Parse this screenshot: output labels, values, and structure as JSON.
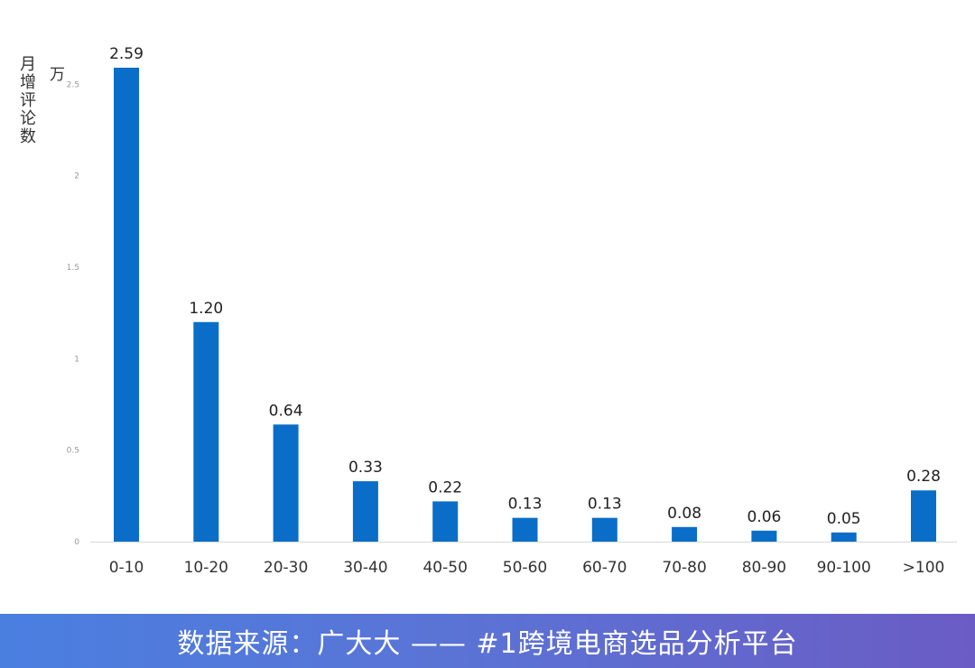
{
  "chart_data": {
    "type": "bar",
    "categories": [
      "0-10",
      "10-20",
      "20-30",
      "30-40",
      "40-50",
      "50-60",
      "60-70",
      "70-80",
      "80-90",
      "90-100",
      ">100"
    ],
    "values": [
      2.59,
      1.2,
      0.64,
      0.33,
      0.22,
      0.13,
      0.13,
      0.08,
      0.06,
      0.05,
      0.28
    ],
    "value_labels": [
      "2.59",
      "1.20",
      "0.64",
      "0.33",
      "0.22",
      "0.13",
      "0.13",
      "0.08",
      "0.06",
      "0.05",
      "0.28"
    ],
    "ylabel": "月增评论数",
    "yunit": "万",
    "ylim": [
      0,
      2.6
    ],
    "yticks": [
      0,
      0.5,
      1,
      1.5,
      2,
      2.5
    ],
    "ytick_labels": [
      "0",
      "0.5",
      "1",
      "1.5",
      "2",
      "2.5"
    ],
    "grid": false,
    "bar_color": "#0a6ec8"
  },
  "footer": {
    "text": "数据来源：广大大 —— #1跨境电商选品分析平台"
  }
}
